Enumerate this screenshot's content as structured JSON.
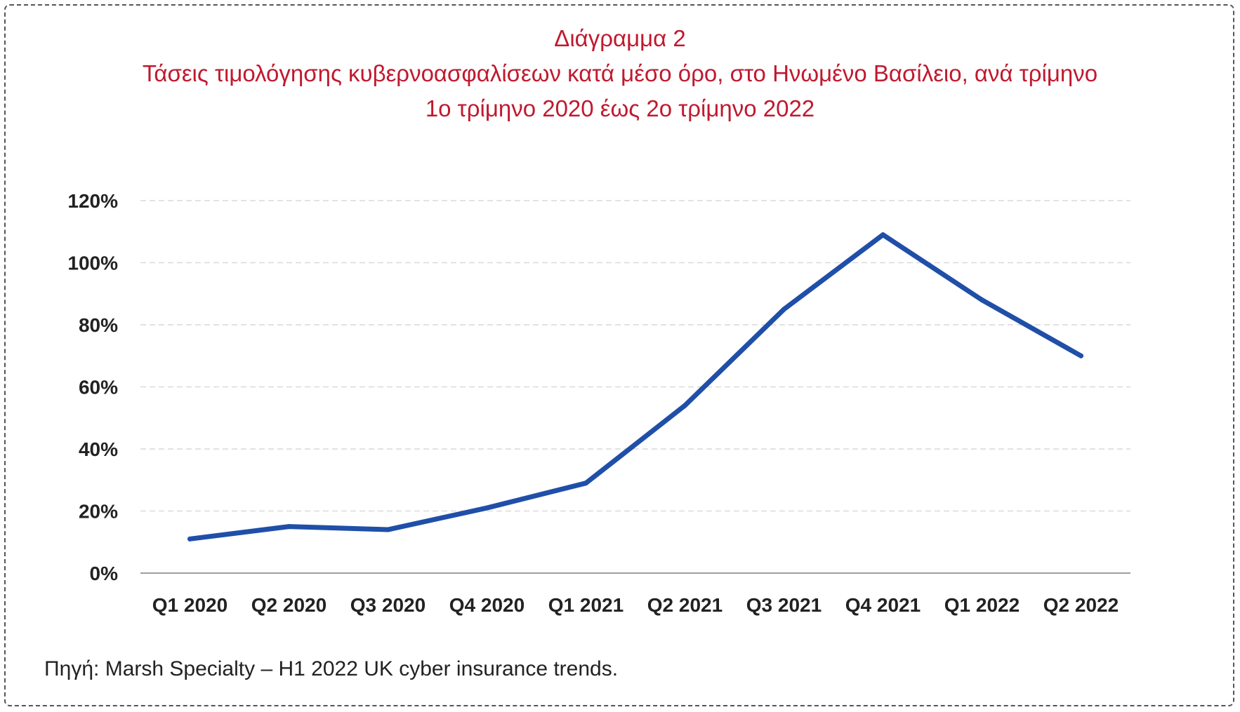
{
  "chart_data": {
    "type": "line",
    "title": "Διάγραμμα 2",
    "subtitle": "Τάσεις τιμολόγησης κυβερνοασφαλίσεων κατά μέσο όρο, στο Ηνωμένο Βασίλειο, ανά τρίμηνο",
    "subtitle2": "1ο τρίμηνο 2020 έως 2ο τρίμηνο 2022",
    "xlabel": "",
    "ylabel": "",
    "categories": [
      "Q1 2020",
      "Q2 2020",
      "Q3 2020",
      "Q4 2020",
      "Q1 2021",
      "Q2 2021",
      "Q3 2021",
      "Q4 2021",
      "Q1 2022",
      "Q2 2022"
    ],
    "series": [
      {
        "values": [
          11,
          15,
          14,
          21,
          29,
          54,
          85,
          109,
          88,
          70
        ],
        "color": "#1f4fa8"
      }
    ],
    "ylim": [
      0,
      120
    ],
    "yticks": [
      0,
      20,
      40,
      60,
      80,
      100,
      120
    ],
    "ytick_labels": [
      "0%",
      "20%",
      "40%",
      "60%",
      "80%",
      "100%",
      "120%"
    ],
    "grid": true,
    "legend": "none"
  },
  "source": "Πηγή: Marsh Specialty – H1 2022 UK cyber insurance trends.",
  "colors": {
    "title": "#c0192f",
    "line": "#1f4fa8",
    "grid": "#d9d9d9",
    "axis": "#7f7f7f",
    "tick_text": "#222222"
  }
}
